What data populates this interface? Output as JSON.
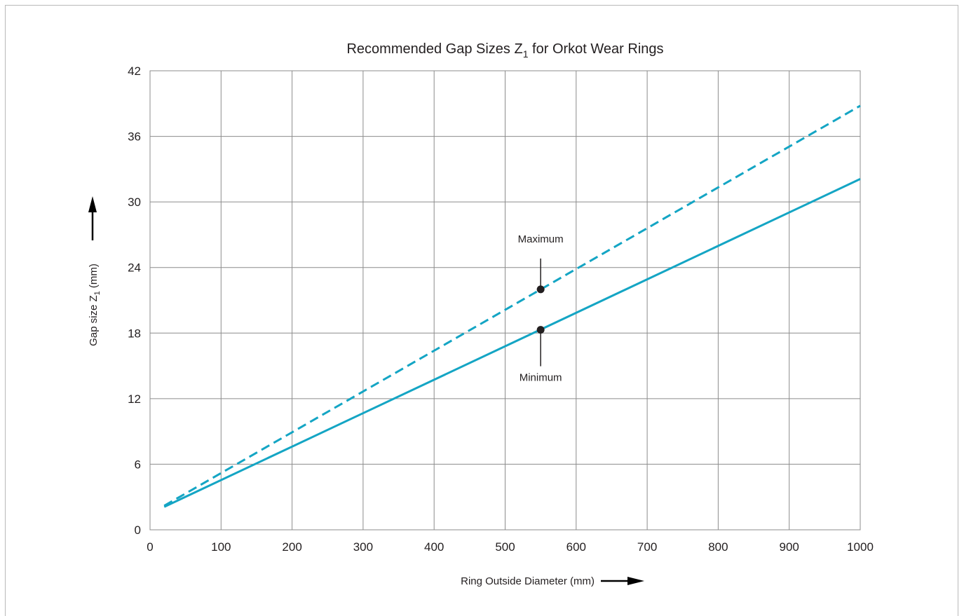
{
  "chart_data": {
    "type": "line",
    "title": "Recommended Gap Sizes Z",
    "title_subscript": "1",
    "title_suffix": " for Orkot Wear Rings",
    "xlabel": "Ring Outside Diameter (mm)",
    "ylabel": "Gap size Z",
    "ylabel_subscript": "1",
    "ylabel_suffix": " (mm)",
    "xlim": [
      0,
      1000
    ],
    "ylim": [
      0,
      42
    ],
    "x_ticks": [
      "0",
      "100",
      "200",
      "300",
      "400",
      "500",
      "600",
      "700",
      "800",
      "900",
      "1000"
    ],
    "y_ticks": [
      "0",
      "6",
      "12",
      "18",
      "24",
      "30",
      "36",
      "42"
    ],
    "grid": true,
    "series": [
      {
        "name": "Maximum",
        "style": "dashed",
        "color": "#14a5c4",
        "x": [
          20,
          1000
        ],
        "y": [
          2.2,
          38.8
        ]
      },
      {
        "name": "Minimum",
        "style": "solid",
        "color": "#14a5c4",
        "x": [
          20,
          1000
        ],
        "y": [
          2.1,
          32.1
        ]
      }
    ],
    "annotations": [
      {
        "label": "Maximum",
        "x": 550,
        "y": 22.0,
        "position": "above"
      },
      {
        "label": "Minimum",
        "x": 550,
        "y": 18.3,
        "position": "below"
      }
    ]
  }
}
